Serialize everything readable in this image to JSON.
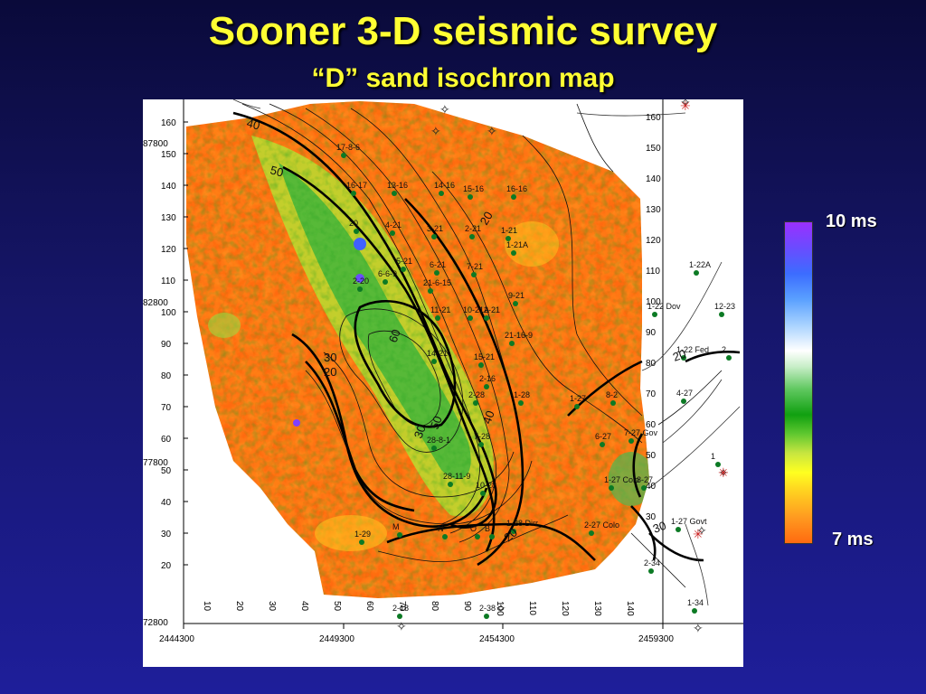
{
  "header": {
    "title": "Sooner 3-D seismic survey",
    "subtitle": "“D” sand isochron map"
  },
  "colorbar": {
    "top_label": "10 ms",
    "bottom_label": "7 ms",
    "colors": [
      "#9a30ff",
      "#3c6cff",
      "#a8d2ff",
      "#ffffff",
      "#10a010",
      "#ffff20",
      "#ff6a10"
    ]
  },
  "map": {
    "x_axis_labels": [
      "2444300",
      "2449300",
      "2454300",
      "2459300"
    ],
    "y_axis_labels": [
      "87800",
      "82800",
      "77800",
      "72800"
    ],
    "left_ticks": [
      "160",
      "150",
      "140",
      "130",
      "120",
      "110",
      "100",
      "90",
      "80",
      "70",
      "60",
      "50",
      "40",
      "30",
      "20"
    ],
    "right_ticks": [
      "160",
      "150",
      "140",
      "130",
      "120",
      "110",
      "100",
      "90",
      "80",
      "70",
      "60",
      "50",
      "40",
      "30"
    ],
    "bottom_ticks": [
      "10",
      "20",
      "30",
      "40",
      "50",
      "60",
      "70",
      "80",
      "90",
      "100",
      "110",
      "120",
      "130",
      "140"
    ],
    "contour_labels": [
      "40",
      "50",
      "20",
      "60",
      "30",
      "40",
      "30",
      "50",
      "20",
      "20",
      "20",
      "30"
    ],
    "wells": [
      "17-8-6",
      "16-17",
      "13-16",
      "14-16",
      "15-16",
      "16-16",
      "20",
      "4-21",
      "3-21",
      "2-21",
      "1-21",
      "1-21A",
      "5-21",
      "6-21",
      "7-21",
      "6-6-9",
      "21-6-15",
      "9-21",
      "11-21",
      "10-21A",
      "12-21",
      "14-21",
      "15-21",
      "21-16-9",
      "2-28",
      "1-28",
      "1-27",
      "8-2",
      "7-28",
      "28-8-1",
      "28-11-9",
      "10-28",
      "6-27",
      "7-27 Gov",
      "1-27 Colo",
      "8-27",
      "1-29",
      "M",
      "N",
      "O",
      "B",
      "1-28 Dirr",
      "2-27 Colo",
      "1-27 Govt",
      "2-38",
      "2-34",
      "1-34",
      "1-22A",
      "12-23",
      "1-22 Dov",
      "1-22 Fed",
      "2",
      "4-27",
      "1",
      "2-18",
      "2-20",
      "2-16"
    ]
  }
}
